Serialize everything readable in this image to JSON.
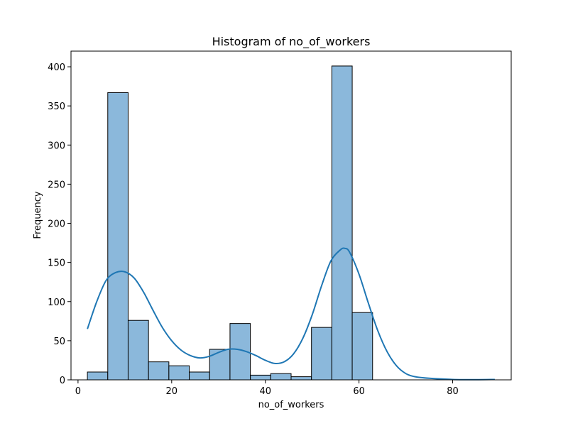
{
  "chart_data": {
    "type": "bar",
    "title": "Histogram of no_of_workers",
    "xlabel": "no_of_workers",
    "ylabel": "Frequency",
    "xlim": [
      -1.5,
      92.5
    ],
    "ylim": [
      0,
      420
    ],
    "x_ticks": [
      0,
      20,
      40,
      60,
      80
    ],
    "y_ticks": [
      0,
      50,
      100,
      150,
      200,
      250,
      300,
      350,
      400
    ],
    "bins": [
      {
        "x0": 2.0,
        "x1": 6.35,
        "count": 10
      },
      {
        "x0": 6.35,
        "x1": 10.7,
        "count": 367
      },
      {
        "x0": 10.7,
        "x1": 15.05,
        "count": 76
      },
      {
        "x0": 15.05,
        "x1": 19.4,
        "count": 23
      },
      {
        "x0": 19.4,
        "x1": 23.75,
        "count": 18
      },
      {
        "x0": 23.75,
        "x1": 28.1,
        "count": 10
      },
      {
        "x0": 28.1,
        "x1": 32.45,
        "count": 39
      },
      {
        "x0": 32.45,
        "x1": 36.8,
        "count": 72
      },
      {
        "x0": 36.8,
        "x1": 41.15,
        "count": 6
      },
      {
        "x0": 41.15,
        "x1": 45.5,
        "count": 8
      },
      {
        "x0": 45.5,
        "x1": 49.85,
        "count": 4
      },
      {
        "x0": 49.85,
        "x1": 54.2,
        "count": 67
      },
      {
        "x0": 54.2,
        "x1": 58.55,
        "count": 401
      },
      {
        "x0": 58.55,
        "x1": 62.9,
        "count": 86
      }
    ],
    "kde": {
      "x": [
        2,
        4,
        6,
        8,
        10,
        12,
        14,
        16,
        18,
        20,
        22,
        24,
        26,
        28,
        30,
        32,
        34,
        36,
        38,
        40,
        42,
        44,
        46,
        48,
        50,
        52,
        54,
        56,
        57,
        58,
        60,
        62,
        64,
        66,
        68,
        70,
        72,
        75,
        80,
        85,
        89
      ],
      "y": [
        65,
        100,
        127,
        137,
        138,
        130,
        112,
        89,
        67,
        50,
        38,
        31,
        28,
        30,
        35,
        39,
        39,
        36,
        31,
        25,
        21,
        23,
        33,
        53,
        83,
        120,
        152,
        166,
        168,
        163,
        135,
        98,
        63,
        36,
        18,
        8,
        4,
        2,
        0.5,
        0.2,
        0.5
      ]
    },
    "bar_color": "#8bb8db",
    "bar_edge_color": "#000000",
    "kde_color": "#1f77b4",
    "grid": false
  }
}
